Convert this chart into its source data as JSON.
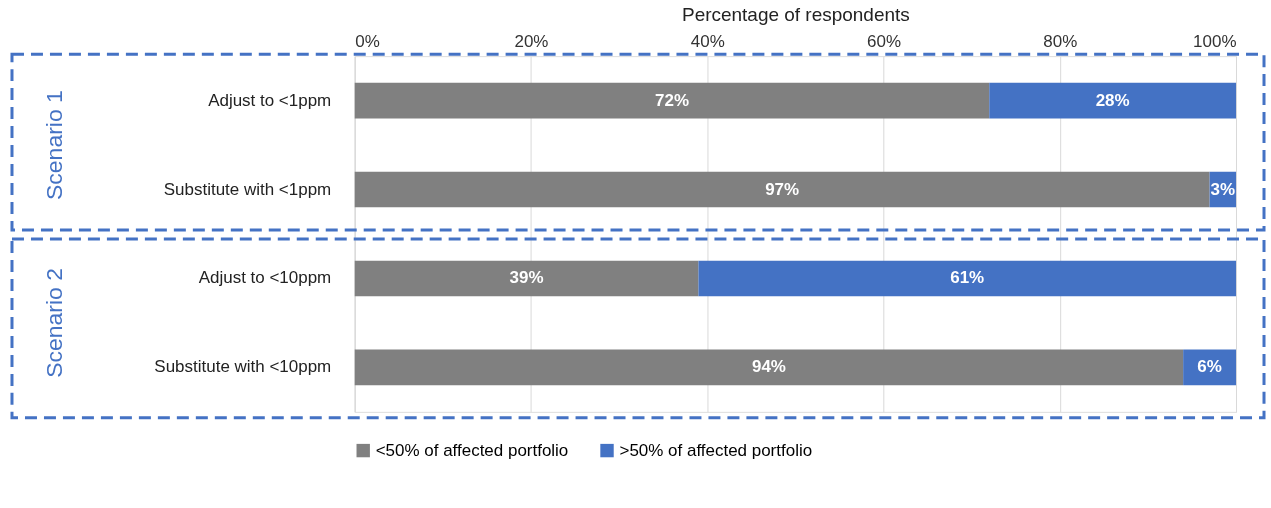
{
  "chart_data": {
    "type": "bar",
    "orientation": "horizontal",
    "stacked": true,
    "xlabel": "Percentage of respondents",
    "categories": [
      "Adjust to <1ppm",
      "Substitute with <1ppm",
      "Adjust to <10ppm",
      "Substitute with <10ppm"
    ],
    "series": [
      {
        "name": "<50% of affected portfolio",
        "color": "#808080",
        "values": [
          72,
          97,
          39,
          94
        ],
        "value_labels": [
          "72%",
          "97%",
          "39%",
          "94%"
        ]
      },
      {
        "name": ">50% of affected portfolio",
        "color": "#4472c4",
        "values": [
          28,
          3,
          61,
          6
        ],
        "value_labels": [
          "28%",
          "3%",
          "61%",
          "6%"
        ]
      }
    ],
    "xlim": [
      0,
      100
    ],
    "xticks": [
      {
        "value": 0,
        "label": "0%"
      },
      {
        "value": 20,
        "label": "20%"
      },
      {
        "value": 40,
        "label": "40%"
      },
      {
        "value": 60,
        "label": "60%"
      },
      {
        "value": 80,
        "label": "80%"
      },
      {
        "value": 100,
        "label": "100%"
      }
    ],
    "grid": "x",
    "legend": "bottom",
    "annotations": [
      "Scenario 1",
      "Scenario 2"
    ]
  }
}
